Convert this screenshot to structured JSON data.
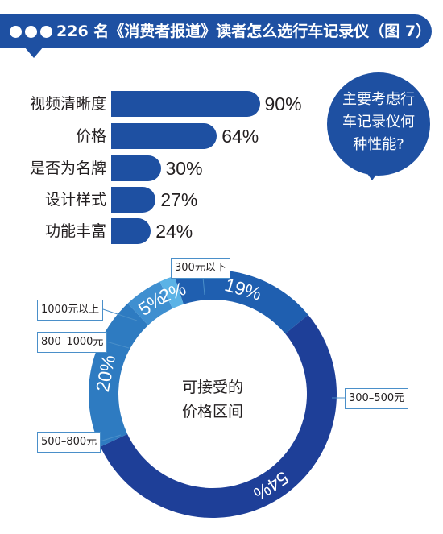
{
  "title": "226 名《消费者报道》读者怎么选行车记录仪（图 7）",
  "question": "主要考虑行车记录仪何种性能?",
  "question_lines": [
    "主要考虑行",
    "车记录仪何",
    "种性能?"
  ],
  "donut_center_lines": [
    "可接受的",
    "价格区间"
  ],
  "colors": {
    "brand_blue": "#1e50a2",
    "slice_300_500": "#1e3f98",
    "slice_300_below": "#1f5fb0",
    "slice_1000_above": "#5bb3e6",
    "slice_800_1000": "#3f8fd0",
    "slice_500_800": "#2e7bc1"
  },
  "chart_data": [
    {
      "type": "bar",
      "orientation": "horizontal",
      "categories": [
        "视频清晰度",
        "价格",
        "是否为名牌",
        "设计样式",
        "功能丰富"
      ],
      "values": [
        90,
        64,
        30,
        27,
        24
      ],
      "value_labels": [
        "90%",
        "64%",
        "30%",
        "27%",
        "24%"
      ],
      "xlim": [
        0,
        100
      ]
    },
    {
      "type": "pie",
      "variant": "donut",
      "title_lines": [
        "可接受的",
        "价格区间"
      ],
      "slices": [
        {
          "label": "300元以下",
          "value": 19,
          "value_label": "19%"
        },
        {
          "label": "300–500元",
          "value": 54,
          "value_label": "54%"
        },
        {
          "label": "500–800元",
          "value": 20,
          "value_label": "20%"
        },
        {
          "label": "800–1000元",
          "value": 5,
          "value_label": "5%"
        },
        {
          "label": "1000元以上",
          "value": 2,
          "value_label": "2%"
        }
      ]
    }
  ]
}
